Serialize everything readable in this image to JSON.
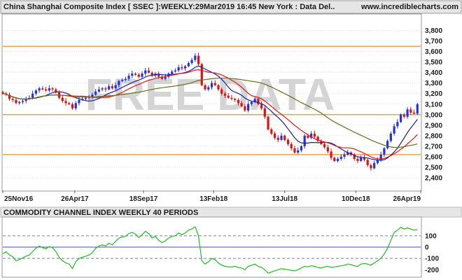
{
  "header": {
    "title": "China Shanghai Composite Index [ SSEC ]:WEEKLY:29Mar2019 16:45 New York : Data Del..",
    "site": "www.incrediblecharts.com"
  },
  "watermark": "FREE DATA",
  "colors": {
    "background": "#ffffff",
    "header_bg": "#e6e6e6",
    "up_bar": "#2233dd",
    "down_bar": "#dd1111",
    "ma_short": "#1a1aaa",
    "ma_mid": "#e01818",
    "ma_long": "#6b6b1a",
    "support_lines": "#e8902a",
    "cci_line": "#22bb22",
    "cci_zero": "#4444cc",
    "cci_band": "#7777aa"
  },
  "chart_data": [
    {
      "type": "candlestick",
      "name": "price",
      "title": "China Shanghai Composite Index [ SSEC ]:WEEKLY:29Mar2019 16:45 New York : Data Del..",
      "ylim": [
        2280,
        3950
      ],
      "yticks": [
        2400,
        2500,
        2600,
        2700,
        2800,
        2900,
        3000,
        3100,
        3200,
        3300,
        3400,
        3500,
        3600,
        3700,
        3800
      ],
      "ytick_labels": [
        "2,400",
        "2,500",
        "2,600",
        "2,700",
        "2,800",
        "2,900",
        "3,000",
        "3,100",
        "3,200",
        "3,300",
        "3,400",
        "3,500",
        "3,600",
        "3,700",
        "3,800"
      ],
      "x_start": "2016-11-25",
      "x_end": "2019-04-26",
      "xticks": [
        "2016-11-25",
        "2017-04-26",
        "2017-09-18",
        "2018-02-13",
        "2018-07-13",
        "2018-12-10",
        "2019-04-26"
      ],
      "xtick_labels": [
        "25Nov16",
        "26Apr17",
        "18Sep17",
        "13Feb18",
        "13Jul18",
        "10Dec18",
        "26Apr19"
      ],
      "horizontal_lines": [
        3650,
        3000,
        2620
      ],
      "grid": "horizontal dotted",
      "weekly_close": [
        3200,
        3190,
        3150,
        3140,
        3110,
        3120,
        3130,
        3150,
        3160,
        3200,
        3230,
        3250,
        3240,
        3230,
        3250,
        3240,
        3210,
        3160,
        3130,
        3110,
        3100,
        3060,
        3110,
        3140,
        3150,
        3160,
        3170,
        3190,
        3220,
        3240,
        3250,
        3240,
        3270,
        3250,
        3280,
        3320,
        3330,
        3340,
        3370,
        3390,
        3380,
        3360,
        3390,
        3420,
        3400,
        3370,
        3390,
        3360,
        3340,
        3360,
        3390,
        3410,
        3420,
        3450,
        3440,
        3460,
        3490,
        3520,
        3560,
        3480,
        3280,
        3240,
        3260,
        3300,
        3280,
        3240,
        3200,
        3180,
        3160,
        3150,
        3140,
        3110,
        3080,
        3040,
        3100,
        3120,
        3150,
        3100,
        3060,
        2980,
        2860,
        2820,
        2780,
        2760,
        2800,
        2760,
        2720,
        2680,
        2640,
        2660,
        2700,
        2800,
        2780,
        2820,
        2790,
        2750,
        2720,
        2690,
        2650,
        2590,
        2560,
        2580,
        2600,
        2620,
        2640,
        2620,
        2580,
        2560,
        2590,
        2570,
        2520,
        2490,
        2540,
        2570,
        2620,
        2680,
        2750,
        2820,
        2890,
        2930,
        3000,
        2980,
        3050,
        3020,
        3010,
        3100
      ],
      "moving_averages": [
        {
          "period": 10,
          "color": "#1a1aaa"
        },
        {
          "period": 16,
          "color": "#e01818"
        },
        {
          "period": 40,
          "color": "#6b6b1a"
        }
      ]
    },
    {
      "type": "line",
      "name": "cci",
      "title": "COMMODITY CHANNEL INDEX WEEKLY 40 PERIODS",
      "ylim": [
        -260,
        260
      ],
      "yticks": [
        100,
        0,
        -100,
        -200
      ],
      "ytick_labels": [
        "100",
        "0",
        "-100",
        "-200"
      ],
      "band_lines": [
        100,
        -100
      ],
      "zero_line": 0,
      "weekly_values": [
        -60,
        -40,
        -70,
        -85,
        -120,
        -110,
        -95,
        -80,
        -70,
        -40,
        -10,
        10,
        -5,
        -15,
        5,
        -5,
        -40,
        -90,
        -120,
        -140,
        -150,
        -190,
        -130,
        -100,
        -90,
        -80,
        -70,
        -50,
        -10,
        10,
        20,
        10,
        35,
        20,
        50,
        80,
        90,
        95,
        120,
        130,
        115,
        85,
        110,
        140,
        120,
        80,
        95,
        60,
        40,
        55,
        80,
        95,
        100,
        125,
        110,
        125,
        150,
        160,
        180,
        100,
        -120,
        -150,
        -130,
        -100,
        -110,
        -140,
        -160,
        -170,
        -175,
        -175,
        -170,
        -180,
        -185,
        -200,
        -170,
        -160,
        -150,
        -170,
        -180,
        -200,
        -230,
        -220,
        -210,
        -200,
        -190,
        -195,
        -200,
        -205,
        -210,
        -200,
        -185,
        -170,
        -175,
        -165,
        -170,
        -180,
        -185,
        -175,
        -170,
        -180,
        -175,
        -170,
        -165,
        -160,
        -150,
        -155,
        -165,
        -170,
        -150,
        -145,
        -150,
        -160,
        -140,
        -120,
        -100,
        -60,
        -10,
        60,
        130,
        150,
        175,
        160,
        170,
        160,
        150,
        155
      ]
    }
  ]
}
